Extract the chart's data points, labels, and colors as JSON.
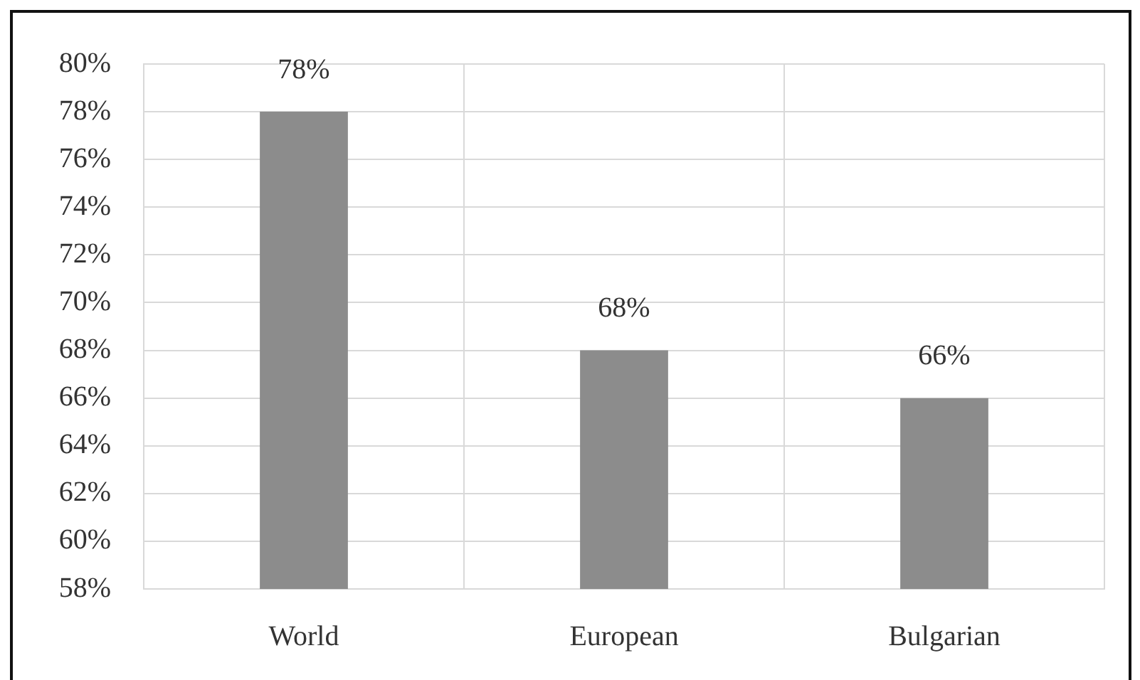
{
  "chart_data": {
    "type": "bar",
    "categories": [
      "World",
      "European",
      "Bulgarian"
    ],
    "values": [
      78,
      68,
      66
    ],
    "color": "#8c8c8c",
    "value_labels": [
      "78%",
      "68%",
      "66%"
    ],
    "ylim": [
      58,
      80
    ],
    "yticks": [
      {
        "value": 58,
        "label": "58%"
      },
      {
        "value": 60,
        "label": "60%"
      },
      {
        "value": 62,
        "label": "62%"
      },
      {
        "value": 64,
        "label": "64%"
      },
      {
        "value": 66,
        "label": "66%"
      },
      {
        "value": 68,
        "label": "68%"
      },
      {
        "value": 70,
        "label": "70%"
      },
      {
        "value": 72,
        "label": "72%"
      },
      {
        "value": 74,
        "label": "74%"
      },
      {
        "value": 76,
        "label": "76%"
      },
      {
        "value": 78,
        "label": "78%"
      },
      {
        "value": 80,
        "label": "80%"
      }
    ],
    "grid": true
  }
}
